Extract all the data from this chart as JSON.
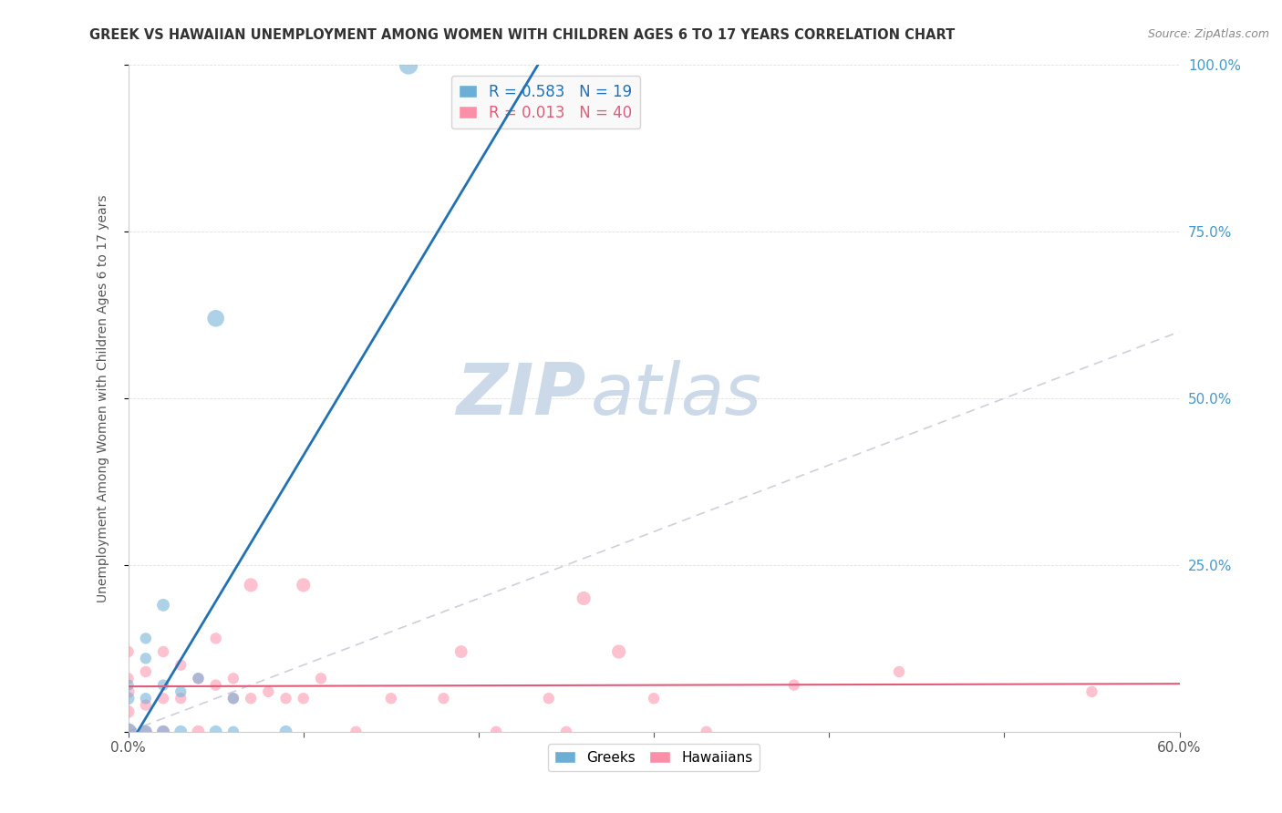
{
  "title": "GREEK VS HAWAIIAN UNEMPLOYMENT AMONG WOMEN WITH CHILDREN AGES 6 TO 17 YEARS CORRELATION CHART",
  "source": "Source: ZipAtlas.com",
  "ylabel": "Unemployment Among Women with Children Ages 6 to 17 years",
  "xlabel": "",
  "xlim": [
    0.0,
    0.6
  ],
  "ylim": [
    0.0,
    1.0
  ],
  "xticks": [
    0.0,
    0.1,
    0.2,
    0.3,
    0.4,
    0.5,
    0.6
  ],
  "xticklabels": [
    "0.0%",
    "",
    "",
    "",
    "",
    "",
    "60.0%"
  ],
  "yticks": [
    0.0,
    0.25,
    0.5,
    0.75,
    1.0
  ],
  "right_yticklabels": [
    "",
    "25.0%",
    "50.0%",
    "75.0%",
    "100.0%"
  ],
  "greek_R": 0.583,
  "greek_N": 19,
  "hawaiian_R": 0.013,
  "hawaiian_N": 40,
  "greek_color": "#6baed6",
  "hawaiian_color": "#fc8fa8",
  "greek_line_color": "#2171b5",
  "hawaiian_line_color": "#e05c7a",
  "watermark_zip": "ZIP",
  "watermark_atlas": "atlas",
  "watermark_color": "#ccd9e8",
  "greek_x": [
    0.0,
    0.0,
    0.0,
    0.01,
    0.01,
    0.01,
    0.01,
    0.02,
    0.02,
    0.02,
    0.03,
    0.03,
    0.04,
    0.05,
    0.05,
    0.06,
    0.06,
    0.09,
    0.16
  ],
  "greek_y": [
    0.0,
    0.05,
    0.07,
    0.0,
    0.05,
    0.11,
    0.14,
    0.0,
    0.07,
    0.19,
    0.0,
    0.06,
    0.08,
    0.0,
    0.62,
    0.0,
    0.05,
    0.0,
    1.0
  ],
  "hawaiian_x": [
    0.0,
    0.0,
    0.0,
    0.0,
    0.0,
    0.01,
    0.01,
    0.01,
    0.02,
    0.02,
    0.02,
    0.03,
    0.03,
    0.04,
    0.04,
    0.05,
    0.05,
    0.06,
    0.06,
    0.07,
    0.07,
    0.08,
    0.09,
    0.1,
    0.1,
    0.11,
    0.13,
    0.15,
    0.18,
    0.19,
    0.21,
    0.24,
    0.25,
    0.26,
    0.28,
    0.3,
    0.33,
    0.38,
    0.44,
    0.55
  ],
  "hawaiian_y": [
    0.0,
    0.03,
    0.06,
    0.08,
    0.12,
    0.0,
    0.04,
    0.09,
    0.0,
    0.05,
    0.12,
    0.05,
    0.1,
    0.0,
    0.08,
    0.07,
    0.14,
    0.05,
    0.08,
    0.05,
    0.22,
    0.06,
    0.05,
    0.05,
    0.22,
    0.08,
    0.0,
    0.05,
    0.05,
    0.12,
    0.0,
    0.05,
    0.0,
    0.2,
    0.12,
    0.05,
    0.0,
    0.07,
    0.09,
    0.06
  ],
  "greek_marker_sizes": [
    180,
    100,
    80,
    100,
    80,
    80,
    80,
    100,
    80,
    100,
    100,
    80,
    80,
    100,
    180,
    80,
    80,
    100,
    220
  ],
  "hawaiian_marker_sizes": [
    180,
    100,
    100,
    80,
    80,
    100,
    80,
    80,
    100,
    80,
    80,
    80,
    80,
    100,
    80,
    80,
    80,
    80,
    80,
    80,
    120,
    80,
    80,
    80,
    120,
    80,
    80,
    80,
    80,
    100,
    80,
    80,
    80,
    120,
    120,
    80,
    80,
    80,
    80,
    80
  ],
  "legend_box_color": "#f8f8f8",
  "legend_border_color": "#cccccc",
  "bottom_legend_labels": [
    "Greeks",
    "Hawaiians"
  ],
  "grid_color": "#dddddd",
  "spine_color": "#cccccc"
}
